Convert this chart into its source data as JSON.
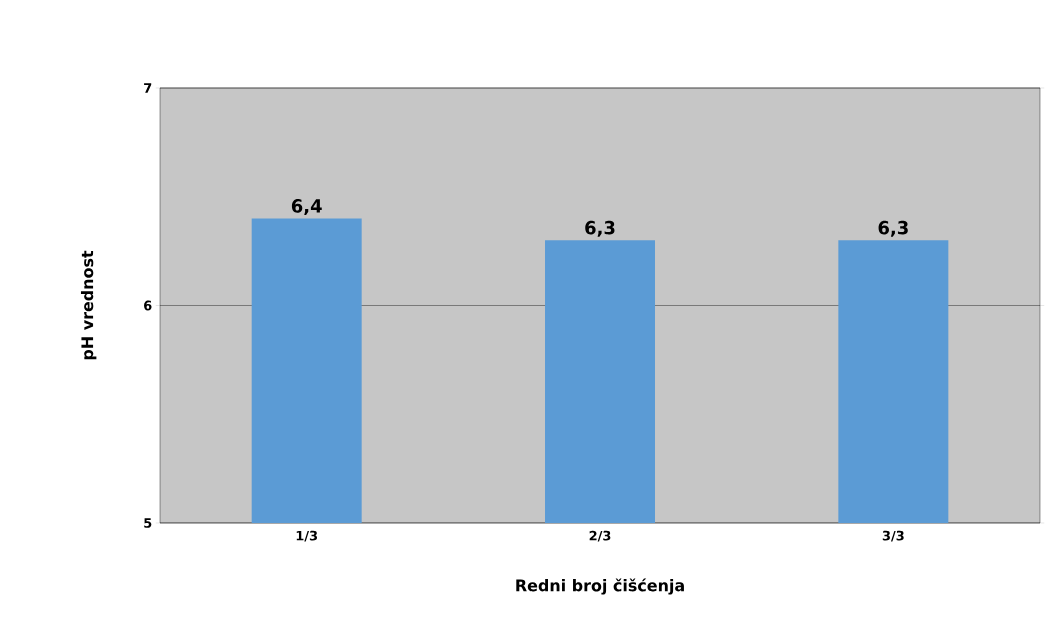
{
  "chart_data": {
    "type": "bar",
    "xlabel": "Redni broj čišćenja",
    "ylabel": "pH vrednost",
    "categories": [
      "1/3",
      "2/3",
      "3/3"
    ],
    "values": [
      6.4,
      6.3,
      6.3
    ],
    "color": "#5b9bd5",
    "value_labels": [
      "6,4",
      "6,3",
      "6,3"
    ],
    "ylim": [
      5,
      7
    ],
    "yticks": [
      5,
      6,
      7
    ],
    "grid": "y"
  }
}
